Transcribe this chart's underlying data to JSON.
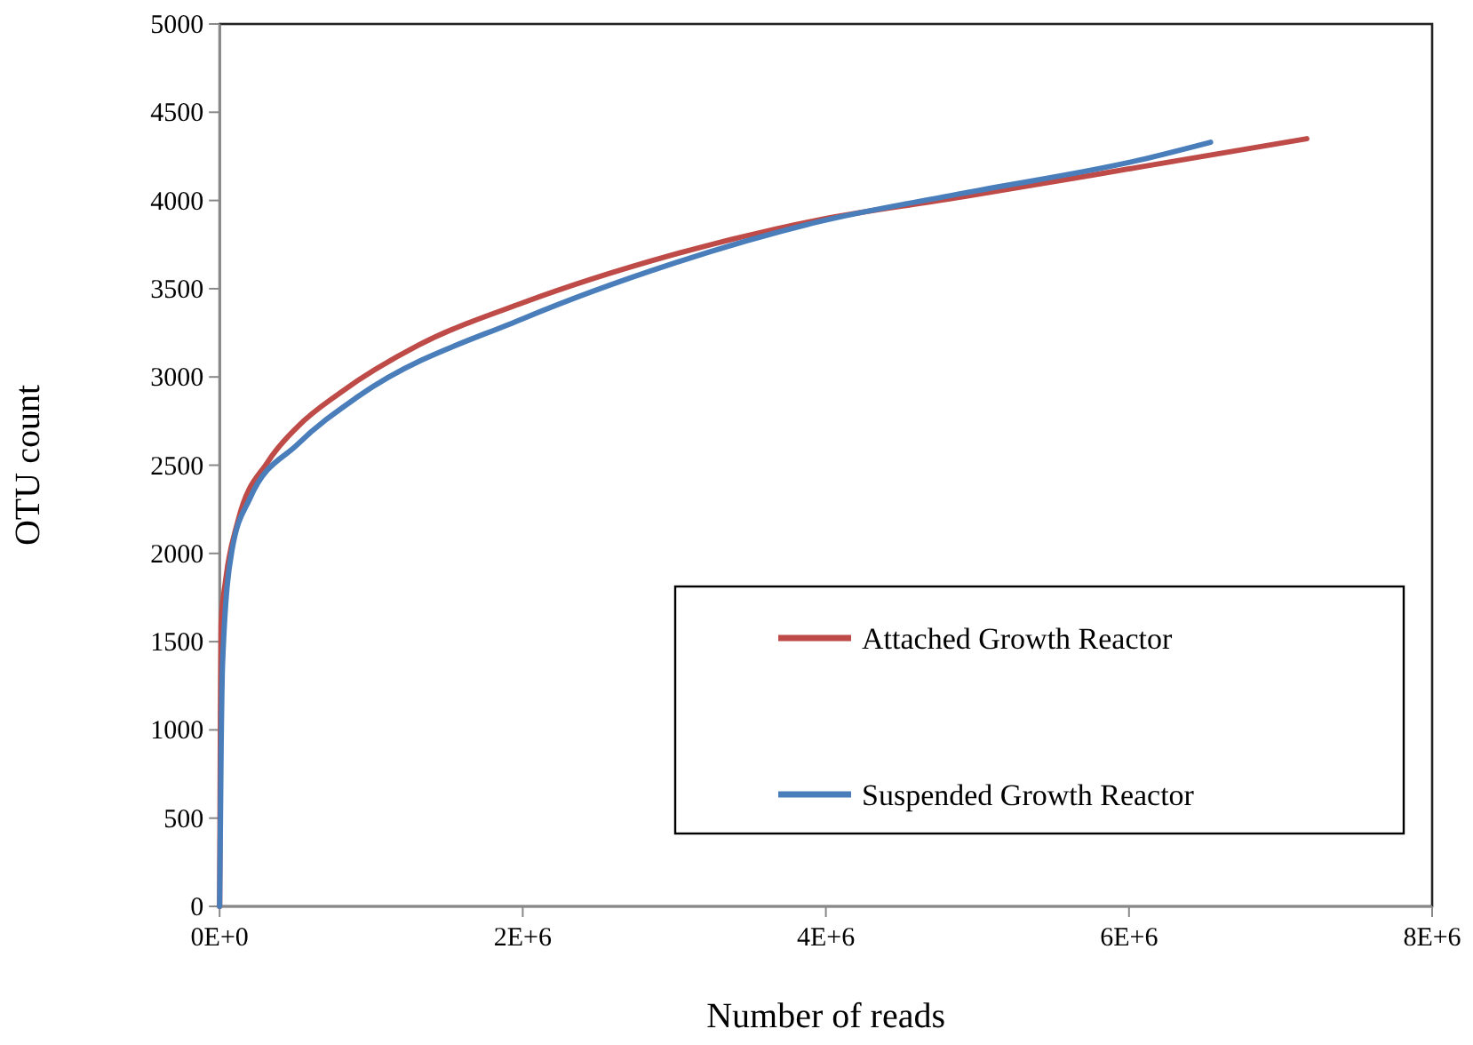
{
  "chart_data": {
    "type": "line",
    "xlabel": "Number of reads",
    "ylabel": "OTU count",
    "xlim": [
      0,
      8000000
    ],
    "xticks": [
      {
        "value": 0,
        "label": "0E+0"
      },
      {
        "value": 2000000,
        "label": "2E+6"
      },
      {
        "value": 4000000,
        "label": "4E+6"
      },
      {
        "value": 6000000,
        "label": "6E+6"
      },
      {
        "value": 8000000,
        "label": "8E+6"
      }
    ],
    "ylim": [
      0,
      5000
    ],
    "yticks": [
      0,
      500,
      1000,
      1500,
      2000,
      2500,
      3000,
      3500,
      4000,
      4500,
      5000
    ],
    "legend": "bottom right",
    "grid": false,
    "marker": "none",
    "line_style": "solid",
    "series": [
      {
        "name": "Attached Growth Reactor",
        "color": "#be4b48",
        "x": [
          0,
          5000,
          10000,
          40000,
          120000,
          319000,
          517000,
          795000,
          1312000,
          2000000,
          2981000,
          3955000,
          4899000,
          6075000,
          7173000
        ],
        "values": [
          0,
          1000,
          1600,
          1850,
          2180,
          2520,
          2720,
          2910,
          3180,
          3420,
          3690,
          3890,
          4020,
          4190,
          4350
        ]
      },
      {
        "name": "Suspended Growth Reactor",
        "color": "#4a7ebb",
        "x": [
          0,
          10000,
          20000,
          80000,
          199000,
          517000,
          915000,
          2000000,
          2981000,
          3955000,
          4899000,
          6075000,
          6538000
        ],
        "values": [
          0,
          900,
          1390,
          2010,
          2310,
          2620,
          2890,
          3330,
          3640,
          3880,
          4040,
          4230,
          4330
        ]
      }
    ]
  }
}
